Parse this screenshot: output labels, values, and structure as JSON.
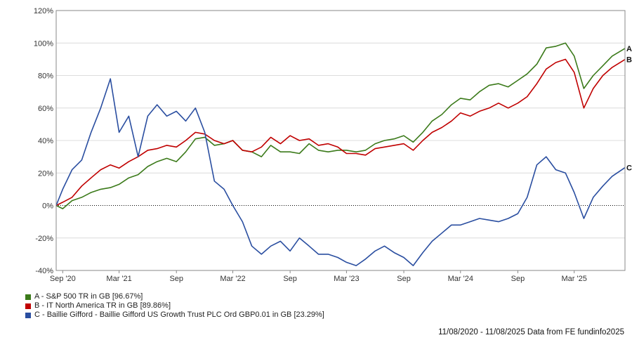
{
  "chart_data": {
    "type": "line",
    "x_tick_labels": [
      "Sep '20",
      "Mar '21",
      "Sep",
      "Mar '22",
      "Sep",
      "Mar '23",
      "Sep",
      "Mar '24",
      "Sep",
      "Mar '25"
    ],
    "x_ticks": [
      "2020-09-01",
      "2021-03-01",
      "2021-09-01",
      "2022-03-01",
      "2022-09-01",
      "2023-03-01",
      "2023-09-01",
      "2024-03-01",
      "2024-09-01",
      "2025-03-01"
    ],
    "x_range": [
      "2020-08-11",
      "2025-08-11"
    ],
    "y_tick_labels": [
      "120%",
      "100%",
      "80%",
      "60%",
      "40%",
      "20%",
      "0%",
      "-20%",
      "-40%"
    ],
    "ylim": [
      -40,
      120
    ],
    "y_unit": "%",
    "zero_line": "dotted",
    "grid": "horizontal",
    "series": [
      {
        "name": "A - S&P 500 TR in GB [96.67%]",
        "end_label": "A",
        "color": "#3b7a1a",
        "points": [
          [
            "2020-08-11",
            0
          ],
          [
            "2020-09-01",
            -2
          ],
          [
            "2020-10-01",
            3
          ],
          [
            "2020-11-01",
            5
          ],
          [
            "2020-12-01",
            8
          ],
          [
            "2021-01-01",
            10
          ],
          [
            "2021-02-01",
            11
          ],
          [
            "2021-03-01",
            13
          ],
          [
            "2021-04-01",
            17
          ],
          [
            "2021-05-01",
            19
          ],
          [
            "2021-06-01",
            24
          ],
          [
            "2021-07-01",
            27
          ],
          [
            "2021-08-01",
            29
          ],
          [
            "2021-09-01",
            27
          ],
          [
            "2021-10-01",
            33
          ],
          [
            "2021-11-01",
            41
          ],
          [
            "2021-12-01",
            42
          ],
          [
            "2022-01-01",
            37
          ],
          [
            "2022-02-01",
            38
          ],
          [
            "2022-03-01",
            40
          ],
          [
            "2022-04-01",
            34
          ],
          [
            "2022-05-01",
            33
          ],
          [
            "2022-06-01",
            30
          ],
          [
            "2022-07-01",
            37
          ],
          [
            "2022-08-01",
            33
          ],
          [
            "2022-09-01",
            33
          ],
          [
            "2022-10-01",
            32
          ],
          [
            "2022-11-01",
            38
          ],
          [
            "2022-12-01",
            34
          ],
          [
            "2023-01-01",
            33
          ],
          [
            "2023-02-01",
            34
          ],
          [
            "2023-03-01",
            34
          ],
          [
            "2023-04-01",
            33
          ],
          [
            "2023-05-01",
            34
          ],
          [
            "2023-06-01",
            38
          ],
          [
            "2023-07-01",
            40
          ],
          [
            "2023-08-01",
            41
          ],
          [
            "2023-09-01",
            43
          ],
          [
            "2023-10-01",
            39
          ],
          [
            "2023-11-01",
            45
          ],
          [
            "2023-12-01",
            52
          ],
          [
            "2024-01-01",
            56
          ],
          [
            "2024-02-01",
            62
          ],
          [
            "2024-03-01",
            66
          ],
          [
            "2024-04-01",
            65
          ],
          [
            "2024-05-01",
            70
          ],
          [
            "2024-06-01",
            74
          ],
          [
            "2024-07-01",
            75
          ],
          [
            "2024-08-01",
            73
          ],
          [
            "2024-09-01",
            77
          ],
          [
            "2024-10-01",
            81
          ],
          [
            "2024-11-01",
            87
          ],
          [
            "2024-12-01",
            97
          ],
          [
            "2025-01-01",
            98
          ],
          [
            "2025-02-01",
            100
          ],
          [
            "2025-03-01",
            92
          ],
          [
            "2025-04-01",
            72
          ],
          [
            "2025-05-01",
            80
          ],
          [
            "2025-06-01",
            86
          ],
          [
            "2025-07-01",
            92
          ],
          [
            "2025-08-11",
            96.67
          ]
        ]
      },
      {
        "name": "B - IT North America TR in GB [89.86%]",
        "end_label": "B",
        "color": "#c00000",
        "points": [
          [
            "2020-08-11",
            0
          ],
          [
            "2020-09-01",
            2
          ],
          [
            "2020-10-01",
            5
          ],
          [
            "2020-11-01",
            12
          ],
          [
            "2020-12-01",
            17
          ],
          [
            "2021-01-01",
            22
          ],
          [
            "2021-02-01",
            25
          ],
          [
            "2021-03-01",
            23
          ],
          [
            "2021-04-01",
            27
          ],
          [
            "2021-05-01",
            30
          ],
          [
            "2021-06-01",
            34
          ],
          [
            "2021-07-01",
            35
          ],
          [
            "2021-08-01",
            37
          ],
          [
            "2021-09-01",
            36
          ],
          [
            "2021-10-01",
            40
          ],
          [
            "2021-11-01",
            45
          ],
          [
            "2021-12-01",
            44
          ],
          [
            "2022-01-01",
            40
          ],
          [
            "2022-02-01",
            38
          ],
          [
            "2022-03-01",
            40
          ],
          [
            "2022-04-01",
            34
          ],
          [
            "2022-05-01",
            33
          ],
          [
            "2022-06-01",
            36
          ],
          [
            "2022-07-01",
            42
          ],
          [
            "2022-08-01",
            38
          ],
          [
            "2022-09-01",
            43
          ],
          [
            "2022-10-01",
            40
          ],
          [
            "2022-11-01",
            41
          ],
          [
            "2022-12-01",
            37
          ],
          [
            "2023-01-01",
            38
          ],
          [
            "2023-02-01",
            36
          ],
          [
            "2023-03-01",
            32
          ],
          [
            "2023-04-01",
            32
          ],
          [
            "2023-05-01",
            31
          ],
          [
            "2023-06-01",
            35
          ],
          [
            "2023-07-01",
            36
          ],
          [
            "2023-08-01",
            37
          ],
          [
            "2023-09-01",
            38
          ],
          [
            "2023-10-01",
            34
          ],
          [
            "2023-11-01",
            40
          ],
          [
            "2023-12-01",
            45
          ],
          [
            "2024-01-01",
            48
          ],
          [
            "2024-02-01",
            52
          ],
          [
            "2024-03-01",
            57
          ],
          [
            "2024-04-01",
            55
          ],
          [
            "2024-05-01",
            58
          ],
          [
            "2024-06-01",
            60
          ],
          [
            "2024-07-01",
            63
          ],
          [
            "2024-08-01",
            60
          ],
          [
            "2024-09-01",
            63
          ],
          [
            "2024-10-01",
            67
          ],
          [
            "2024-11-01",
            75
          ],
          [
            "2024-12-01",
            84
          ],
          [
            "2025-01-01",
            88
          ],
          [
            "2025-02-01",
            90
          ],
          [
            "2025-03-01",
            82
          ],
          [
            "2025-04-01",
            60
          ],
          [
            "2025-05-01",
            72
          ],
          [
            "2025-06-01",
            80
          ],
          [
            "2025-07-01",
            85
          ],
          [
            "2025-08-11",
            89.86
          ]
        ]
      },
      {
        "name": "C - Baillie Gifford - Baillie Gifford US Growth Trust PLC Ord GBP0.01 in GB [23.29%]",
        "end_label": "C",
        "color": "#2a4ea0",
        "points": [
          [
            "2020-08-11",
            0
          ],
          [
            "2020-09-01",
            10
          ],
          [
            "2020-10-01",
            22
          ],
          [
            "2020-11-01",
            28
          ],
          [
            "2020-12-01",
            45
          ],
          [
            "2021-01-01",
            60
          ],
          [
            "2021-02-01",
            78
          ],
          [
            "2021-03-01",
            45
          ],
          [
            "2021-04-01",
            55
          ],
          [
            "2021-05-01",
            30
          ],
          [
            "2021-06-01",
            55
          ],
          [
            "2021-07-01",
            62
          ],
          [
            "2021-08-01",
            55
          ],
          [
            "2021-09-01",
            58
          ],
          [
            "2021-10-01",
            52
          ],
          [
            "2021-11-01",
            60
          ],
          [
            "2021-12-01",
            45
          ],
          [
            "2022-01-01",
            15
          ],
          [
            "2022-02-01",
            10
          ],
          [
            "2022-03-01",
            0
          ],
          [
            "2022-04-01",
            -10
          ],
          [
            "2022-05-01",
            -25
          ],
          [
            "2022-06-01",
            -30
          ],
          [
            "2022-07-01",
            -25
          ],
          [
            "2022-08-01",
            -22
          ],
          [
            "2022-09-01",
            -28
          ],
          [
            "2022-10-01",
            -20
          ],
          [
            "2022-11-01",
            -25
          ],
          [
            "2022-12-01",
            -30
          ],
          [
            "2023-01-01",
            -30
          ],
          [
            "2023-02-01",
            -32
          ],
          [
            "2023-03-01",
            -35
          ],
          [
            "2023-04-01",
            -37
          ],
          [
            "2023-05-01",
            -33
          ],
          [
            "2023-06-01",
            -28
          ],
          [
            "2023-07-01",
            -25
          ],
          [
            "2023-08-01",
            -29
          ],
          [
            "2023-09-01",
            -32
          ],
          [
            "2023-10-01",
            -37
          ],
          [
            "2023-11-01",
            -29
          ],
          [
            "2023-12-01",
            -22
          ],
          [
            "2024-01-01",
            -17
          ],
          [
            "2024-02-01",
            -12
          ],
          [
            "2024-03-01",
            -12
          ],
          [
            "2024-04-01",
            -10
          ],
          [
            "2024-05-01",
            -8
          ],
          [
            "2024-06-01",
            -9
          ],
          [
            "2024-07-01",
            -10
          ],
          [
            "2024-08-01",
            -8
          ],
          [
            "2024-09-01",
            -5
          ],
          [
            "2024-10-01",
            5
          ],
          [
            "2024-11-01",
            25
          ],
          [
            "2024-12-01",
            30
          ],
          [
            "2025-01-01",
            22
          ],
          [
            "2025-02-01",
            20
          ],
          [
            "2025-03-01",
            8
          ],
          [
            "2025-04-01",
            -8
          ],
          [
            "2025-05-01",
            5
          ],
          [
            "2025-06-01",
            12
          ],
          [
            "2025-07-01",
            18
          ],
          [
            "2025-08-11",
            23.29
          ]
        ]
      }
    ]
  },
  "footer": {
    "text": "11/08/2020 - 11/08/2025 Data from FE fundinfo2025"
  }
}
